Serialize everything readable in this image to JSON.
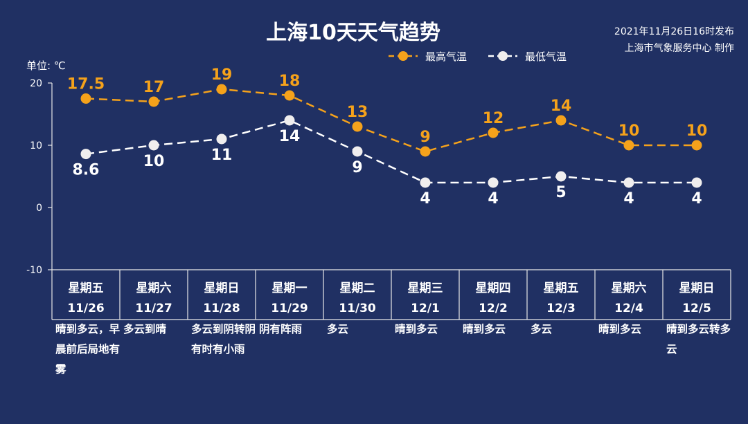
{
  "header": {
    "title": "上海10天天气趋势",
    "issued": "2021年11月26日16时发布",
    "producer": "上海市气象服务中心 制作",
    "unit": "单位: ℃"
  },
  "colors": {
    "background": "#203063",
    "high": "#f5a21b",
    "low": "#ffffff"
  },
  "chart_data": {
    "type": "line",
    "categories": [
      "11/26",
      "11/27",
      "11/28",
      "11/29",
      "11/30",
      "12/1",
      "12/2",
      "12/3",
      "12/4",
      "12/5"
    ],
    "ylim": [
      -10,
      20
    ],
    "yticks": [
      -10,
      0,
      10,
      20
    ],
    "grid": false,
    "legend_position": "top-right",
    "series": [
      {
        "name": "最高气温",
        "values": [
          17.5,
          17,
          19,
          18,
          13,
          9,
          12,
          14,
          10,
          10
        ],
        "labels": [
          "17.5",
          "17",
          "19",
          "18",
          "13",
          "9",
          "12",
          "14",
          "10",
          "10"
        ]
      },
      {
        "name": "最低气温",
        "values": [
          8.6,
          10,
          11,
          14,
          9,
          4,
          4,
          5,
          4,
          4
        ],
        "labels": [
          "8.6",
          "10",
          "11",
          "14",
          "9",
          "4",
          "4",
          "5",
          "4",
          "4"
        ]
      }
    ]
  },
  "days": [
    {
      "week": "星期五",
      "date": "11/26",
      "weather": "晴到多云，早晨前后局地有雾"
    },
    {
      "week": "星期六",
      "date": "11/27",
      "weather": "多云到晴"
    },
    {
      "week": "星期日",
      "date": "11/28",
      "weather": "多云到阴转阴有时有小雨"
    },
    {
      "week": "星期一",
      "date": "11/29",
      "weather": "阴有阵雨"
    },
    {
      "week": "星期二",
      "date": "11/30",
      "weather": "多云"
    },
    {
      "week": "星期三",
      "date": "12/1",
      "weather": "晴到多云"
    },
    {
      "week": "星期四",
      "date": "12/2",
      "weather": "晴到多云"
    },
    {
      "week": "星期五",
      "date": "12/3",
      "weather": "多云"
    },
    {
      "week": "星期六",
      "date": "12/4",
      "weather": "晴到多云"
    },
    {
      "week": "星期日",
      "date": "12/5",
      "weather": "晴到多云转多云"
    }
  ]
}
